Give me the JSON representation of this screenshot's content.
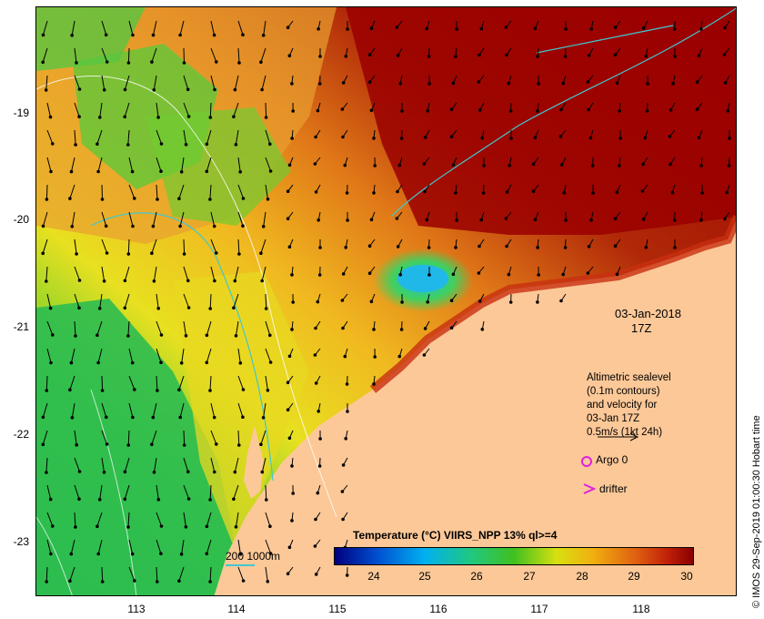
{
  "map": {
    "x_ticks": [
      "113",
      "114",
      "115",
      "116",
      "117",
      "118"
    ],
    "y_ticks": [
      "-19",
      "-20",
      "-21",
      "-22",
      "-23"
    ],
    "land_color": "#fcc898",
    "contour_color": "#40c8d0"
  },
  "date": {
    "line1": "03-Jan-2018",
    "line2": "17Z"
  },
  "altimetry": {
    "lines": [
      "Altimetric sealevel",
      "(0.1m contours)",
      "and velocity for",
      "03-Jan 17Z",
      "0.5m/s (1kt 24h)"
    ]
  },
  "legend": {
    "argo_label": "Argo 0",
    "drifter_label": "drifter",
    "marker_color": "#e020e0",
    "depth_label": "200  1000m"
  },
  "colorbar": {
    "title": "Temperature (°C) VIIRS_NPP 13% ql>=4",
    "ticks": [
      "24",
      "25",
      "26",
      "27",
      "28",
      "29",
      "30"
    ]
  },
  "credit": "© IMOS 29-Sep-2019 01:00:30 Hobart time"
}
